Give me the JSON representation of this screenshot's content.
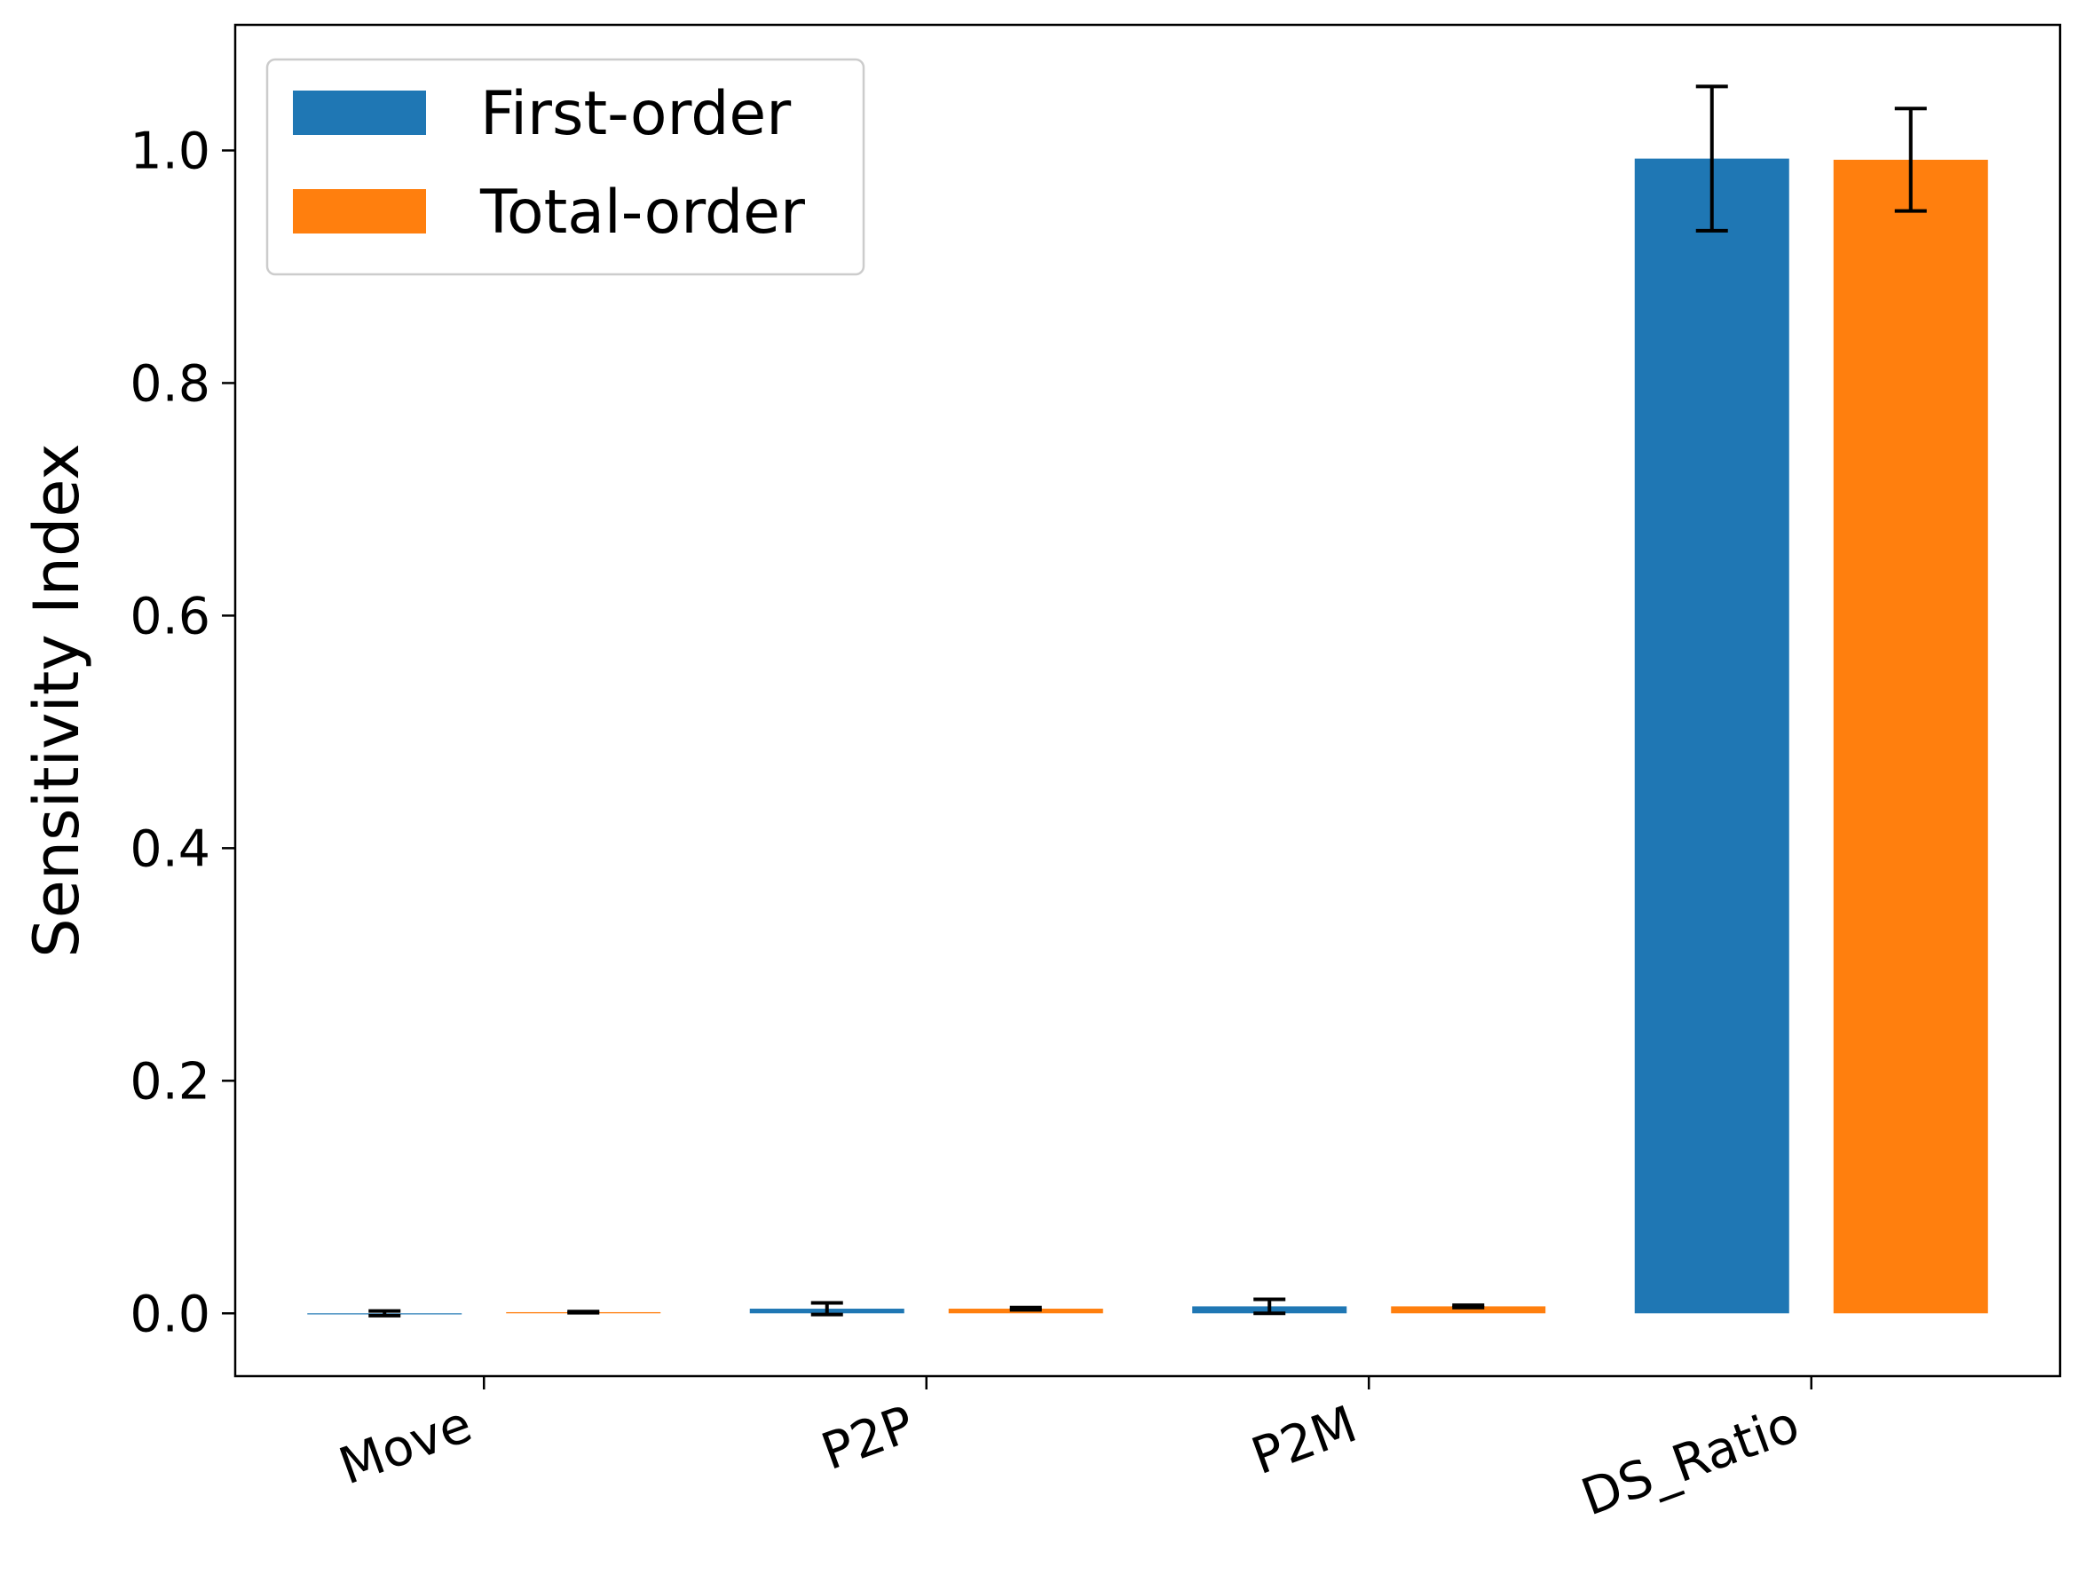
{
  "chart_data": {
    "type": "bar",
    "title": "",
    "xlabel": "",
    "ylabel": "Sensitivity Index",
    "categories": [
      "Move",
      "P2P",
      "P2M",
      "DS_Ratio"
    ],
    "series": [
      {
        "name": "First-order",
        "color": "#1f77b4",
        "values": [
          0.0,
          0.004,
          0.006,
          0.993
        ],
        "errors": [
          0.002,
          0.005,
          0.006,
          0.062
        ]
      },
      {
        "name": "Total-order",
        "color": "#ff7f0e",
        "values": [
          0.001,
          0.004,
          0.006,
          0.992
        ],
        "errors": [
          0.0005,
          0.001,
          0.001,
          0.044
        ]
      }
    ],
    "ylim": [
      -0.054,
      1.108
    ],
    "yticks": [
      0.0,
      0.2,
      0.4,
      0.6,
      0.8,
      1.0
    ],
    "ytick_labels": [
      "0.0",
      "0.2",
      "0.4",
      "0.6",
      "0.8",
      "1.0"
    ],
    "grid": false,
    "legend_position": "top-left"
  }
}
